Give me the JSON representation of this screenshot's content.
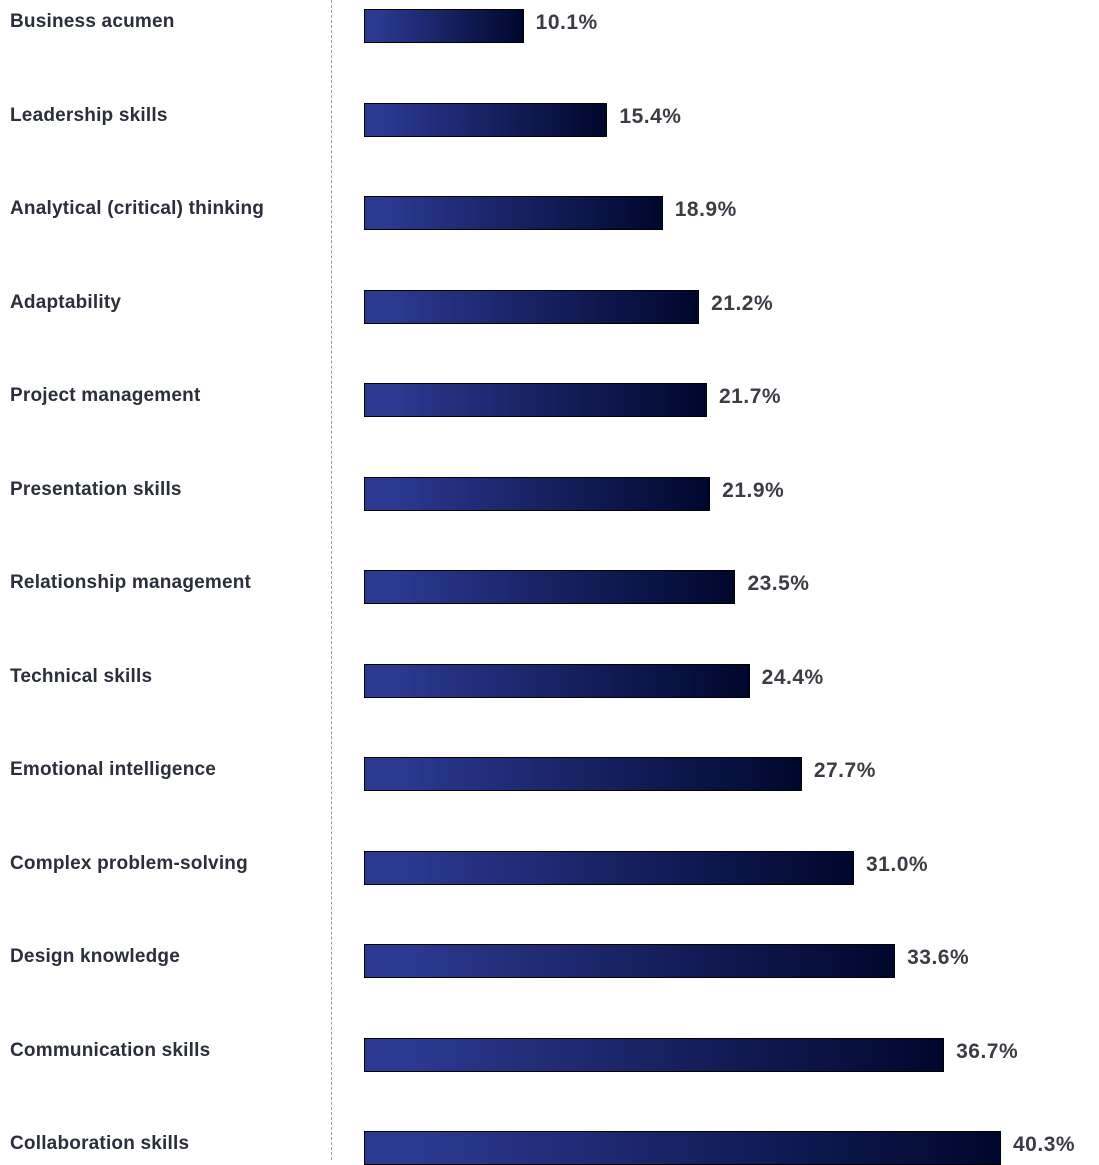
{
  "chart_data": {
    "type": "bar",
    "orientation": "horizontal",
    "categories": [
      "Business acumen",
      "Leadership skills",
      "Analytical (critical) thinking",
      "Adaptability",
      "Project management",
      "Presentation skills",
      "Relationship management",
      "Technical skills",
      "Emotional intelligence",
      "Complex problem-solving",
      "Design knowledge",
      "Communication skills",
      "Collaboration skills"
    ],
    "values": [
      10.1,
      15.4,
      18.9,
      21.2,
      21.7,
      21.9,
      23.5,
      24.4,
      27.7,
      31.0,
      33.6,
      36.7,
      40.3
    ],
    "value_labels": [
      "10.1%",
      "15.4%",
      "18.9%",
      "21.2%",
      "21.7%",
      "21.9%",
      "23.5%",
      "24.4%",
      "27.7%",
      "31.0%",
      "33.6%",
      "36.7%",
      "40.3%"
    ],
    "value_suffix": "%",
    "xlim": [
      0,
      40.3
    ],
    "grid": false,
    "legend": "none",
    "title": "",
    "xlabel": "",
    "ylabel": "",
    "bar_gradient": [
      "#2b3990",
      "#00072d"
    ],
    "colors": {
      "category_text": "#2b2f3a",
      "value_text": "#3a3d44",
      "divider": "#9a9a9a",
      "bar_border": "#000000"
    }
  }
}
